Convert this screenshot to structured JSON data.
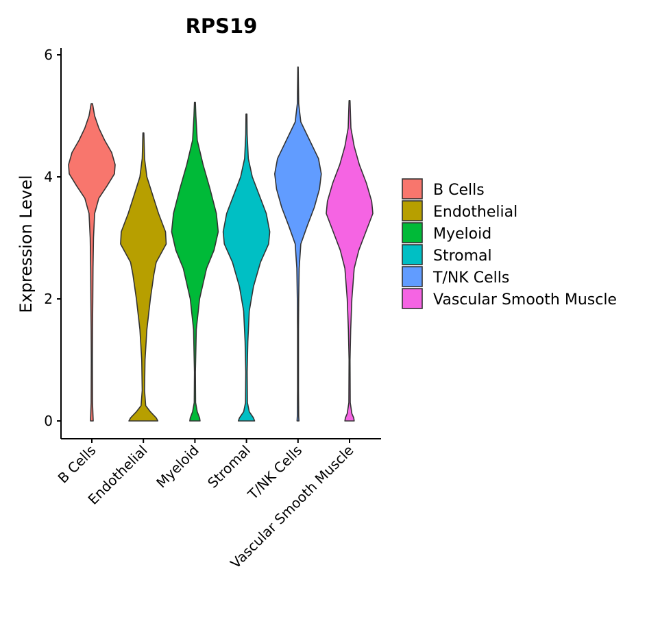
{
  "chart_data": {
    "type": "violin",
    "title": "RPS19",
    "xlabel": "",
    "ylabel": "Expression Level",
    "ylim": [
      -0.3,
      6.1
    ],
    "yticks": [
      0,
      2,
      4,
      6
    ],
    "categories": [
      "B Cells",
      "Endothelial",
      "Myeloid",
      "Stromal",
      "T/NK Cells",
      "Vascular Smooth Muscle"
    ],
    "colors": [
      "#F8766D",
      "#B79F00",
      "#00BA38",
      "#00BFC4",
      "#619CFF",
      "#F564E3"
    ],
    "legend_position": "right",
    "series": [
      {
        "name": "B Cells",
        "max": 5.2,
        "profile": [
          [
            0,
            0.06
          ],
          [
            0.08,
            0.05
          ],
          [
            0.3,
            0.03
          ],
          [
            1,
            0.025
          ],
          [
            1.5,
            0.03
          ],
          [
            2,
            0.04
          ],
          [
            2.5,
            0.05
          ],
          [
            3,
            0.07
          ],
          [
            3.4,
            0.12
          ],
          [
            3.65,
            0.3
          ],
          [
            3.85,
            0.65
          ],
          [
            4.05,
            0.97
          ],
          [
            4.2,
            1.0
          ],
          [
            4.4,
            0.85
          ],
          [
            4.6,
            0.55
          ],
          [
            4.8,
            0.3
          ],
          [
            5.0,
            0.12
          ],
          [
            5.2,
            0.03
          ]
        ]
      },
      {
        "name": "Endothelial",
        "max": 4.72,
        "profile": [
          [
            0,
            0.62
          ],
          [
            0.05,
            0.55
          ],
          [
            0.15,
            0.3
          ],
          [
            0.25,
            0.1
          ],
          [
            0.5,
            0.05
          ],
          [
            1,
            0.07
          ],
          [
            1.5,
            0.15
          ],
          [
            2,
            0.3
          ],
          [
            2.4,
            0.45
          ],
          [
            2.6,
            0.55
          ],
          [
            2.9,
            0.98
          ],
          [
            3.1,
            0.95
          ],
          [
            3.4,
            0.65
          ],
          [
            3.7,
            0.4
          ],
          [
            4.0,
            0.15
          ],
          [
            4.3,
            0.05
          ],
          [
            4.72,
            0.02
          ]
        ]
      },
      {
        "name": "Myeloid",
        "max": 5.22,
        "profile": [
          [
            0,
            0.22
          ],
          [
            0.05,
            0.2
          ],
          [
            0.15,
            0.1
          ],
          [
            0.3,
            0.03
          ],
          [
            0.8,
            0.02
          ],
          [
            1.5,
            0.06
          ],
          [
            2,
            0.2
          ],
          [
            2.5,
            0.5
          ],
          [
            2.8,
            0.82
          ],
          [
            3.1,
            1.0
          ],
          [
            3.4,
            0.92
          ],
          [
            3.8,
            0.65
          ],
          [
            4.2,
            0.35
          ],
          [
            4.6,
            0.1
          ],
          [
            5.0,
            0.04
          ],
          [
            5.22,
            0.02
          ]
        ]
      },
      {
        "name": "Stromal",
        "max": 5.03,
        "profile": [
          [
            0,
            0.35
          ],
          [
            0.05,
            0.3
          ],
          [
            0.15,
            0.12
          ],
          [
            0.3,
            0.04
          ],
          [
            0.8,
            0.03
          ],
          [
            1.3,
            0.06
          ],
          [
            1.8,
            0.12
          ],
          [
            2.2,
            0.3
          ],
          [
            2.6,
            0.6
          ],
          [
            2.9,
            0.95
          ],
          [
            3.1,
            1.0
          ],
          [
            3.4,
            0.85
          ],
          [
            3.7,
            0.55
          ],
          [
            4.0,
            0.25
          ],
          [
            4.3,
            0.08
          ],
          [
            4.7,
            0.03
          ],
          [
            5.03,
            0.02
          ]
        ]
      },
      {
        "name": "T/NK Cells",
        "max": 5.8,
        "profile": [
          [
            0,
            0.04
          ],
          [
            0.08,
            0.03
          ],
          [
            0.5,
            0.02
          ],
          [
            1.5,
            0.02
          ],
          [
            2,
            0.03
          ],
          [
            2.5,
            0.05
          ],
          [
            2.9,
            0.12
          ],
          [
            3.2,
            0.4
          ],
          [
            3.5,
            0.7
          ],
          [
            3.8,
            0.92
          ],
          [
            4.05,
            1.0
          ],
          [
            4.3,
            0.88
          ],
          [
            4.6,
            0.5
          ],
          [
            4.9,
            0.12
          ],
          [
            5.2,
            0.03
          ],
          [
            5.8,
            0.01
          ]
        ]
      },
      {
        "name": "Vascular Smooth Muscle",
        "max": 5.25,
        "profile": [
          [
            0,
            0.2
          ],
          [
            0.05,
            0.18
          ],
          [
            0.12,
            0.1
          ],
          [
            0.3,
            0.03
          ],
          [
            1,
            0.02
          ],
          [
            1.5,
            0.05
          ],
          [
            2,
            0.1
          ],
          [
            2.5,
            0.2
          ],
          [
            2.8,
            0.4
          ],
          [
            3.1,
            0.7
          ],
          [
            3.4,
            1.0
          ],
          [
            3.6,
            0.95
          ],
          [
            3.9,
            0.72
          ],
          [
            4.2,
            0.42
          ],
          [
            4.5,
            0.2
          ],
          [
            4.8,
            0.06
          ],
          [
            5.25,
            0.02
          ]
        ]
      }
    ]
  }
}
